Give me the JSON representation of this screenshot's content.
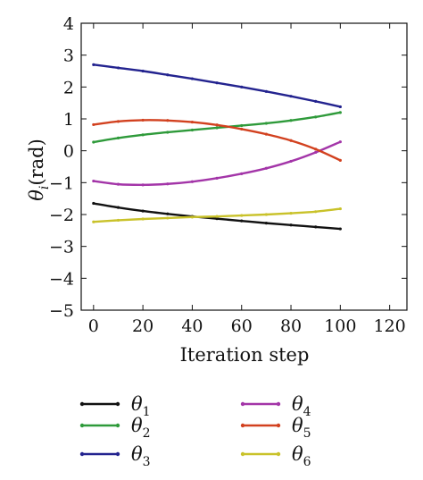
{
  "chart_data": {
    "type": "line",
    "xlabel": "Iteration step",
    "ylabel": "θ",
    "ylabel_sub": "i",
    "ylabel_unit": "(rad)",
    "xlim": [
      -5,
      127
    ],
    "ylim": [
      -5,
      4
    ],
    "xticks": [
      0,
      20,
      40,
      60,
      80,
      100,
      120
    ],
    "yticks": [
      4,
      3,
      2,
      1,
      0,
      -1,
      -2,
      -3,
      -4,
      -5
    ],
    "ytick_labels": [
      "4",
      "3",
      "2",
      "1",
      "0",
      "−1",
      "−2",
      "−3",
      "−4",
      "−5"
    ],
    "legend_position": "bottom",
    "series": [
      {
        "name": "θ",
        "sub": "1",
        "color": "#111111",
        "x": [
          0,
          10,
          20,
          30,
          40,
          50,
          60,
          70,
          80,
          90,
          100
        ],
        "y": [
          -1.65,
          -1.78,
          -1.89,
          -1.98,
          -2.06,
          -2.13,
          -2.2,
          -2.27,
          -2.33,
          -2.39,
          -2.45
        ]
      },
      {
        "name": "θ",
        "sub": "2",
        "color": "#2e9a3a",
        "x": [
          0,
          10,
          20,
          30,
          40,
          50,
          60,
          70,
          80,
          90,
          100
        ],
        "y": [
          0.27,
          0.4,
          0.5,
          0.58,
          0.65,
          0.72,
          0.79,
          0.86,
          0.95,
          1.06,
          1.2
        ]
      },
      {
        "name": "θ",
        "sub": "3",
        "color": "#23238f",
        "x": [
          0,
          10,
          20,
          30,
          40,
          50,
          60,
          70,
          80,
          90,
          100
        ],
        "y": [
          2.7,
          2.6,
          2.5,
          2.38,
          2.26,
          2.13,
          2.0,
          1.86,
          1.71,
          1.55,
          1.38
        ]
      },
      {
        "name": "θ",
        "sub": "4",
        "color": "#a335a8",
        "x": [
          0,
          10,
          20,
          30,
          40,
          50,
          60,
          70,
          80,
          90,
          100
        ],
        "y": [
          -0.95,
          -1.05,
          -1.07,
          -1.04,
          -0.97,
          -0.86,
          -0.72,
          -0.55,
          -0.33,
          -0.05,
          0.28
        ]
      },
      {
        "name": "θ",
        "sub": "5",
        "color": "#d2411f",
        "x": [
          0,
          10,
          20,
          30,
          40,
          50,
          60,
          70,
          80,
          90,
          100
        ],
        "y": [
          0.82,
          0.92,
          0.96,
          0.95,
          0.9,
          0.81,
          0.68,
          0.52,
          0.32,
          0.05,
          -0.3
        ]
      },
      {
        "name": "θ",
        "sub": "6",
        "color": "#c9c22a",
        "x": [
          0,
          10,
          20,
          30,
          40,
          50,
          60,
          70,
          80,
          90,
          100
        ],
        "y": [
          -2.23,
          -2.18,
          -2.14,
          -2.11,
          -2.08,
          -2.06,
          -2.03,
          -2.0,
          -1.96,
          -1.91,
          -1.82
        ]
      }
    ]
  }
}
